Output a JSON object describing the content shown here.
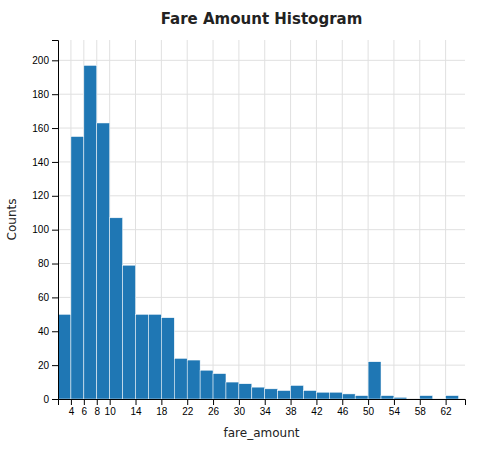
{
  "chart_data": {
    "type": "histogram",
    "title": "Fare Amount Histogram",
    "xlabel": "fare_amount",
    "ylabel": "Counts",
    "bins": [
      2,
      4,
      6,
      8,
      10,
      12,
      14,
      16,
      18,
      20,
      22,
      24,
      26,
      28,
      30,
      32,
      34,
      36,
      38,
      40,
      42,
      44,
      46,
      48,
      50,
      52,
      54,
      56,
      58,
      60,
      62,
      64
    ],
    "values": [
      50,
      155,
      197,
      163,
      107,
      79,
      50,
      50,
      48,
      24,
      23,
      17,
      15,
      10,
      9,
      7,
      6,
      5,
      8,
      5,
      4,
      4,
      3,
      2,
      22,
      2,
      1,
      0,
      2,
      0,
      2
    ],
    "xlim": [
      2,
      65
    ],
    "xticks": [
      4,
      6,
      8,
      10,
      14,
      18,
      22,
      26,
      30,
      34,
      38,
      42,
      46,
      50,
      54,
      58,
      62
    ],
    "ylim": [
      0,
      212
    ],
    "yticks": [
      0,
      20,
      40,
      60,
      80,
      100,
      120,
      140,
      160,
      180,
      200
    ],
    "grid": true
  }
}
